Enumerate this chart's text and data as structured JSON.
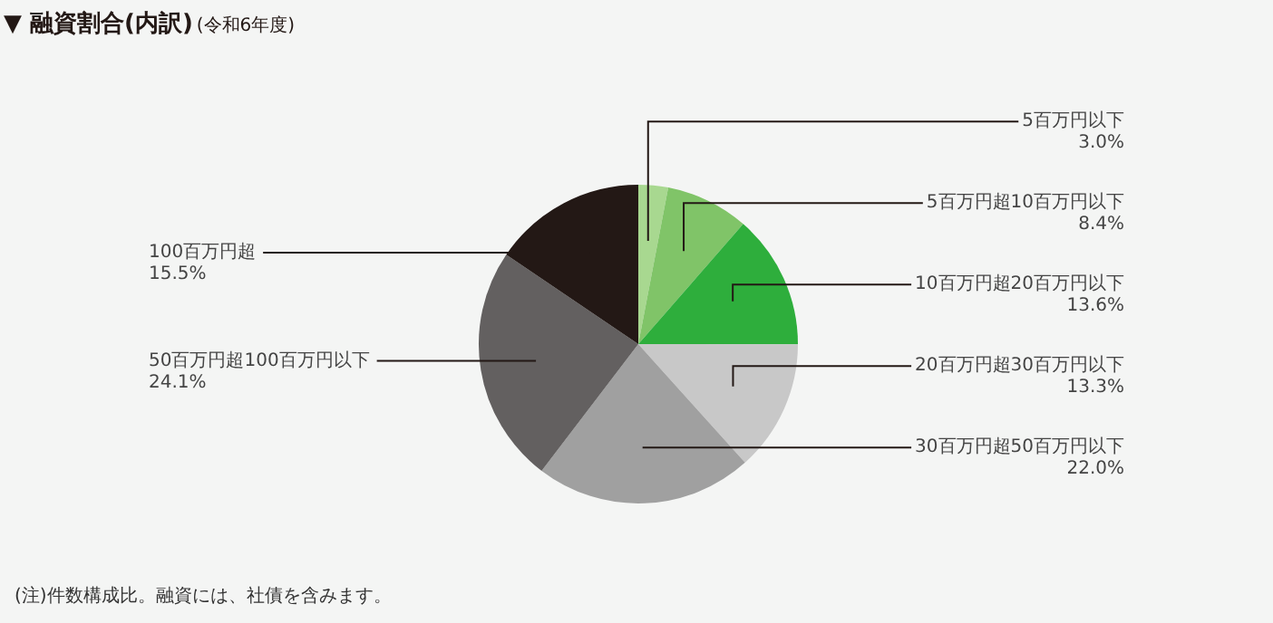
{
  "chart_data": {
    "type": "pie",
    "title": "▼ 融資割合(内訳)",
    "subtitle": "(令和6年度)",
    "categories": [
      "5百万円以下",
      "5百万円超10百万円以下",
      "10百万円超20百万円以下",
      "20百万円超30百万円以下",
      "30百万円超50百万円以下",
      "50百万円超100百万円以下",
      "100百万円超"
    ],
    "values": [
      3.0,
      8.4,
      13.6,
      13.3,
      22.0,
      24.1,
      15.5
    ],
    "value_labels": [
      "3.0%",
      "8.4%",
      "13.6%",
      "13.3%",
      "22.0%",
      "24.1%",
      "15.5%"
    ],
    "colors": [
      "#a8d890",
      "#80c468",
      "#2eae3c",
      "#c8c8c8",
      "#a0a0a0",
      "#636060",
      "#231815"
    ],
    "legend": false,
    "annotations": [
      "(注)件数構成比。融資には、社債を含みます。"
    ]
  }
}
